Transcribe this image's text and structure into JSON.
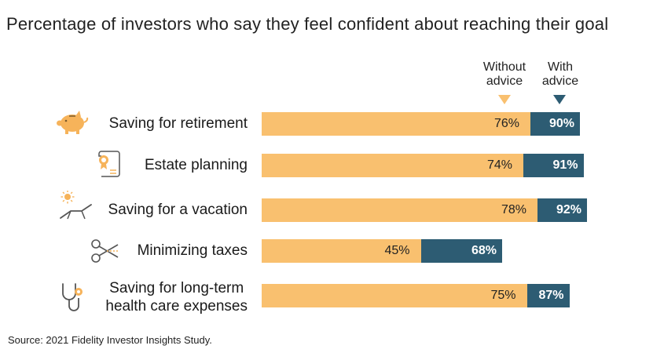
{
  "title": "Percentage of investors who say they feel confident about reaching their goal",
  "source": "Source: 2021 Fidelity Investor Insights Study.",
  "legend": {
    "without": {
      "line1": "Without",
      "line2": "advice"
    },
    "with": {
      "line1": "With",
      "line2": "advice"
    }
  },
  "icons": [
    "piggy-bank-icon",
    "certificate-icon",
    "beach-chair-icon",
    "scissors-icon",
    "stethoscope-icon"
  ],
  "colors": {
    "without": "#f9c06f",
    "with": "#2d5c73",
    "icon": "#f6b35a"
  },
  "chart_data": {
    "type": "bar",
    "orientation": "horizontal",
    "categories": [
      "Saving for retirement",
      "Estate planning",
      "Saving for a vacation",
      "Minimizing taxes",
      "Saving for long-term health care expenses"
    ],
    "category_lines": [
      [
        "Saving for retirement"
      ],
      [
        "Estate planning"
      ],
      [
        "Saving for a vacation"
      ],
      [
        "Minimizing taxes"
      ],
      [
        "Saving for long-term",
        "health care expenses"
      ]
    ],
    "series": [
      {
        "name": "Without advice",
        "values": [
          76,
          74,
          78,
          45,
          75
        ],
        "labels": [
          "76%",
          "74%",
          "78%",
          "45%",
          "75%"
        ]
      },
      {
        "name": "With advice",
        "values": [
          90,
          91,
          92,
          68,
          87
        ],
        "labels": [
          "90%",
          "91%",
          "92%",
          "68%",
          "87%"
        ]
      }
    ],
    "xlim": [
      0,
      100
    ],
    "grid": false,
    "legend_position": "top-right"
  }
}
